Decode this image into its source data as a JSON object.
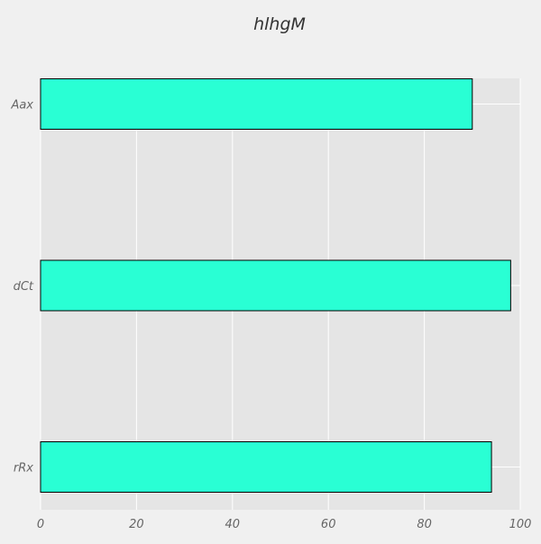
{
  "chart_data": {
    "type": "bar",
    "orientation": "horizontal",
    "title": "hlhgM",
    "xlabel": "",
    "ylabel": "",
    "categories": [
      "Aax",
      "dCt",
      "rRx"
    ],
    "values": [
      90,
      98,
      94
    ],
    "xlim": [
      0,
      100
    ],
    "xticks": [
      0,
      20,
      40,
      60,
      80,
      100
    ],
    "grid": true,
    "legend": "none",
    "colors": {
      "bar_fill": "#29ffd4",
      "bar_edge": "#000000",
      "plot_background": "#e5e5e5",
      "page_background": "#f0f0f0",
      "grid": "#ffffff",
      "tick_text": "#666666",
      "title_text": "#333333"
    }
  }
}
